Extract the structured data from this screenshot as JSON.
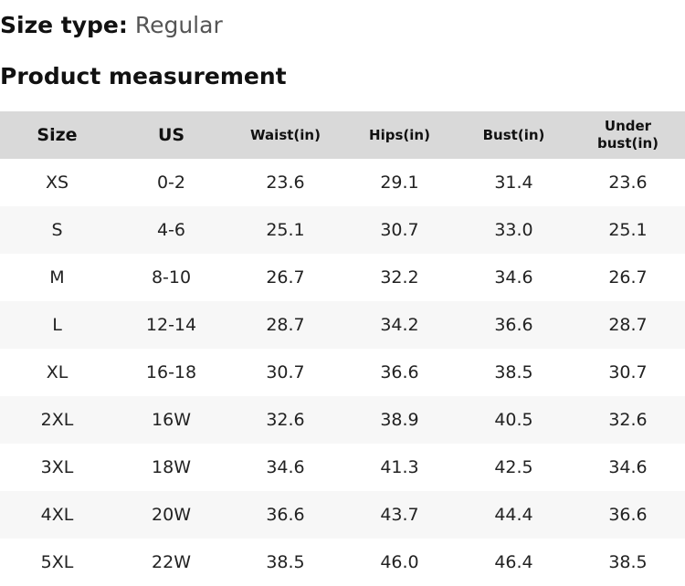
{
  "size_type": {
    "label": "Size type:",
    "value": "Regular"
  },
  "section_title": "Product measurement",
  "table": {
    "header": [
      "Size",
      "US",
      "Waist(in)",
      "Hips(in)",
      "Bust(in)",
      "Under bust(in)"
    ],
    "rows": [
      [
        "XS",
        "0-2",
        "23.6",
        "29.1",
        "31.4",
        "23.6"
      ],
      [
        "S",
        "4-6",
        "25.1",
        "30.7",
        "33.0",
        "25.1"
      ],
      [
        "M",
        "8-10",
        "26.7",
        "32.2",
        "34.6",
        "26.7"
      ],
      [
        "L",
        "12-14",
        "28.7",
        "34.2",
        "36.6",
        "28.7"
      ],
      [
        "XL",
        "16-18",
        "30.7",
        "36.6",
        "38.5",
        "30.7"
      ],
      [
        "2XL",
        "16W",
        "32.6",
        "38.9",
        "40.5",
        "32.6"
      ],
      [
        "3XL",
        "18W",
        "34.6",
        "41.3",
        "42.5",
        "34.6"
      ],
      [
        "4XL",
        "20W",
        "36.6",
        "43.7",
        "44.4",
        "36.6"
      ],
      [
        "5XL",
        "22W",
        "38.5",
        "46.0",
        "46.4",
        "38.5"
      ]
    ]
  }
}
